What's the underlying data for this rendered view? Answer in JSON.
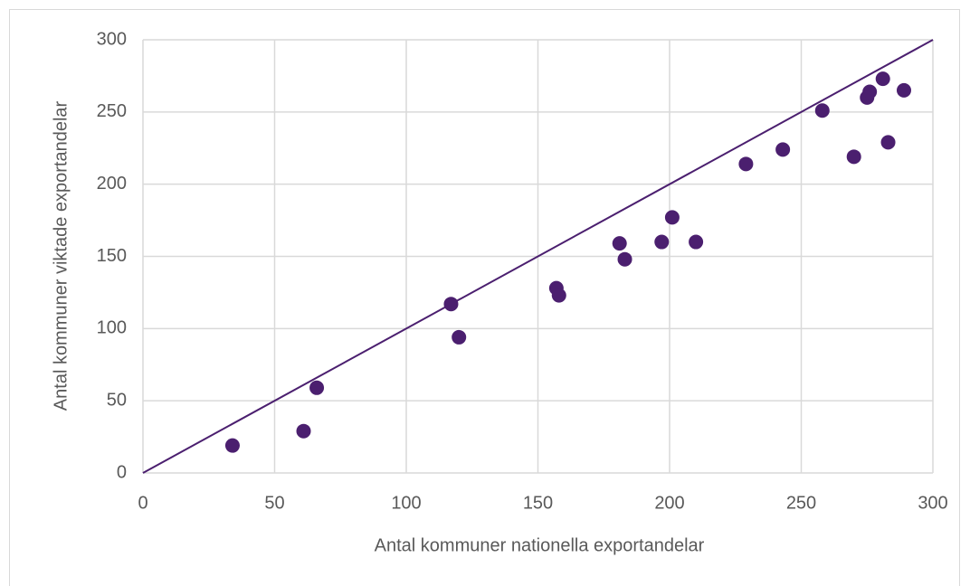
{
  "chart_data": {
    "type": "scatter",
    "x_label": "Antal kommuner nationella exportandelar",
    "y_label": "Antal kommuner viktade exportandelar",
    "xlim": [
      0,
      300
    ],
    "ylim": [
      0,
      300
    ],
    "xticks": [
      0,
      50,
      100,
      150,
      200,
      250,
      300
    ],
    "yticks": [
      0,
      50,
      100,
      150,
      200,
      250,
      300
    ],
    "grid": true,
    "color": "#4b1f6f",
    "x": [
      34,
      61,
      66,
      117,
      120,
      157,
      158,
      181,
      183,
      197,
      201,
      210,
      229,
      243,
      258,
      270,
      275,
      276,
      281,
      283,
      289
    ],
    "values": [
      19,
      29,
      59,
      117,
      94,
      128,
      123,
      159,
      148,
      160,
      177,
      160,
      214,
      224,
      251,
      219,
      260,
      264,
      273,
      229,
      265
    ],
    "reference_line": {
      "x": [
        0,
        300
      ],
      "y": [
        0,
        300
      ],
      "color": "#4b1f6f"
    }
  }
}
